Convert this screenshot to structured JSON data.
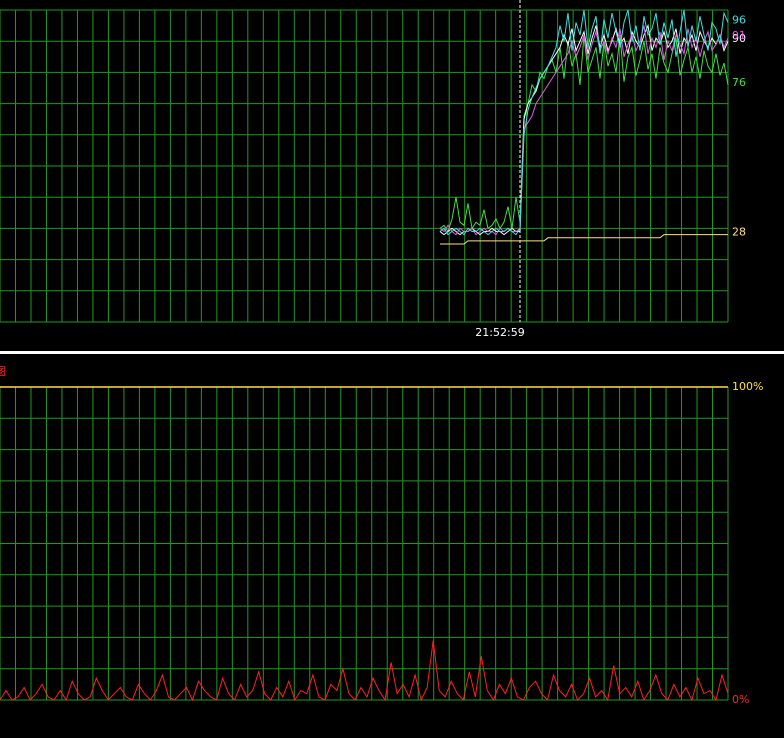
{
  "chart_data": [
    {
      "type": "line",
      "grid": true,
      "end_labels": true,
      "xlim": [
        0,
        182
      ],
      "ylim": [
        0,
        100
      ],
      "x": [
        110,
        111,
        112,
        113,
        114,
        115,
        116,
        117,
        118,
        119,
        120,
        121,
        122,
        123,
        124,
        125,
        126,
        127,
        128,
        129,
        130,
        131,
        132,
        133,
        134,
        135,
        136,
        137,
        138,
        139,
        140,
        141,
        142,
        143,
        144,
        145,
        146,
        147,
        148,
        149,
        150,
        151,
        152,
        153,
        154,
        155,
        156,
        157,
        158,
        159,
        160,
        161,
        162,
        163,
        164,
        165,
        166,
        167,
        168,
        169,
        170,
        171,
        172,
        173,
        174,
        175,
        176,
        177,
        178,
        179,
        180,
        181,
        182
      ],
      "markers": [
        {
          "x": 130,
          "label": "21:52:59"
        }
      ],
      "series": [
        {
          "color": "#ffe080",
          "values": [
            25,
            25,
            25,
            25,
            25,
            25,
            25,
            26,
            26,
            26,
            26,
            26,
            26,
            26,
            26,
            26,
            26,
            26,
            26,
            26,
            26,
            26,
            26,
            26,
            26,
            26,
            26,
            27,
            27,
            27,
            27,
            27,
            27,
            27,
            27,
            27,
            27,
            27,
            27,
            27,
            27,
            27,
            27,
            27,
            27,
            27,
            27,
            27,
            27,
            27,
            27,
            27,
            27,
            27,
            27,
            27,
            28,
            28,
            28,
            28,
            28,
            28,
            28,
            28,
            28,
            28,
            28,
            28,
            28,
            28,
            28,
            28,
            28
          ]
        },
        {
          "color": "#40e040",
          "values": [
            30,
            31,
            29,
            33,
            40,
            32,
            31,
            38,
            30,
            32,
            31,
            36,
            30,
            31,
            33,
            30,
            32,
            37,
            30,
            40,
            32,
            66,
            70,
            76,
            74,
            80,
            78,
            82,
            84,
            80,
            88,
            78,
            90,
            82,
            86,
            76,
            92,
            80,
            84,
            88,
            78,
            90,
            82,
            86,
            80,
            92,
            77,
            85,
            88,
            79,
            84,
            90,
            81,
            86,
            78,
            88,
            83,
            80,
            86,
            91,
            79,
            84,
            88,
            80,
            85,
            78,
            87,
            82,
            80,
            86,
            79,
            83,
            76
          ]
        },
        {
          "color": "#ffffff",
          "values": [
            29,
            28,
            29,
            30,
            29,
            28,
            29,
            29,
            30,
            29,
            28,
            29,
            29,
            30,
            29,
            29,
            28,
            29,
            30,
            29,
            29,
            65,
            70,
            72,
            74,
            78,
            80,
            82,
            84,
            86,
            88,
            92,
            89,
            94,
            87,
            90,
            93,
            86,
            91,
            95,
            88,
            92,
            87,
            90,
            94,
            89,
            91,
            86,
            93,
            90,
            88,
            92,
            95,
            87,
            91,
            89,
            93,
            88,
            90,
            94,
            86,
            91,
            89,
            92,
            87,
            93,
            90,
            88,
            91,
            89,
            92,
            87,
            90
          ]
        },
        {
          "color": "#e060e0",
          "values": [
            30,
            29,
            31,
            29,
            28,
            30,
            29,
            29,
            30,
            28,
            29,
            30,
            29,
            29,
            28,
            30,
            29,
            30,
            29,
            29,
            30,
            62,
            64,
            66,
            70,
            72,
            74,
            76,
            78,
            80,
            82,
            84,
            86,
            90,
            85,
            88,
            92,
            84,
            89,
            93,
            87,
            90,
            86,
            91,
            88,
            94,
            85,
            89,
            92,
            87,
            90,
            95,
            86,
            91,
            88,
            93,
            84,
            90,
            87,
            92,
            89,
            86,
            94,
            88,
            91,
            85,
            90,
            93,
            87,
            89,
            92,
            88,
            91
          ]
        },
        {
          "color": "#40e0e0",
          "values": [
            29,
            30,
            28,
            29,
            30,
            29,
            28,
            30,
            29,
            29,
            30,
            29,
            28,
            29,
            30,
            29,
            29,
            30,
            29,
            28,
            30,
            60,
            68,
            72,
            75,
            78,
            80,
            82,
            85,
            88,
            95,
            90,
            99,
            87,
            96,
            92,
            100,
            88,
            94,
            98,
            86,
            97,
            91,
            99,
            93,
            88,
            96,
            100,
            90,
            95,
            87,
            98,
            92,
            94,
            99,
            89,
            96,
            91,
            97,
            85,
            93,
            100,
            88,
            95,
            90,
            98,
            92,
            87,
            96,
            94,
            89,
            99,
            96
          ]
        }
      ]
    },
    {
      "type": "line",
      "grid": true,
      "title": "图",
      "xlim": [
        0,
        121
      ],
      "ylim": [
        0,
        100
      ],
      "yticks": [
        {
          "value": 0,
          "label": "0%"
        },
        {
          "value": 100,
          "label": "100%"
        }
      ],
      "series": [
        {
          "color": "#ff2020",
          "values": [
            0,
            3,
            0,
            1,
            4,
            0,
            2,
            5,
            1,
            0,
            3,
            0,
            6,
            2,
            0,
            1,
            7,
            3,
            0,
            2,
            4,
            1,
            0,
            5,
            2,
            0,
            3,
            8,
            1,
            0,
            2,
            4,
            0,
            6,
            3,
            1,
            0,
            7,
            2,
            0,
            5,
            1,
            3,
            9,
            2,
            0,
            4,
            1,
            6,
            0,
            3,
            2,
            8,
            1,
            0,
            5,
            3,
            10,
            2,
            0,
            4,
            1,
            7,
            3,
            0,
            12,
            2,
            5,
            1,
            8,
            0,
            4,
            19,
            3,
            1,
            6,
            2,
            0,
            9,
            1,
            14,
            3,
            0,
            5,
            2,
            7,
            1,
            0,
            4,
            6,
            2,
            0,
            8,
            3,
            1,
            5,
            0,
            2,
            7,
            1,
            3,
            0,
            11,
            2,
            4,
            1,
            6,
            0,
            3,
            8,
            2,
            0,
            5,
            1,
            4,
            0,
            7,
            2,
            3,
            0,
            8,
            2
          ]
        }
      ]
    }
  ]
}
